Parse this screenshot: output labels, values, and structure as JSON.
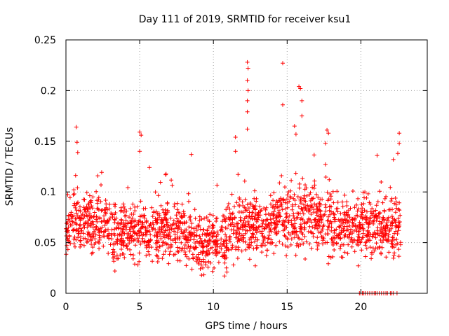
{
  "chart_data": {
    "type": "scatter",
    "title": "Day 111 of 2019, SRMTID for receiver ksu1",
    "xlabel": "GPS time / hours",
    "ylabel": "SRMTID / TECUs",
    "xlim": [
      0,
      24.5
    ],
    "ylim": [
      0,
      0.25
    ],
    "xticks": [
      0,
      5,
      10,
      15,
      20
    ],
    "yticks": [
      0,
      0.05,
      0.1,
      0.15,
      0.2,
      0.25
    ],
    "xtick_labels": [
      "0",
      "5",
      "10",
      "15",
      "20"
    ],
    "ytick_labels": [
      "0",
      "0.05",
      "0.1",
      "0.15",
      "0.2",
      "0.25"
    ],
    "grid": true,
    "marker": "+",
    "series": [
      {
        "name": "SRMTID",
        "color": "#ff0000",
        "approximate_point_count": 1900,
        "density_profile": [
          {
            "x_range": [
              0,
              1
            ],
            "y_center": 0.065,
            "y_spread": 0.03
          },
          {
            "x_range": [
              1,
              3
            ],
            "y_center": 0.07,
            "y_spread": 0.03
          },
          {
            "x_range": [
              3,
              5
            ],
            "y_center": 0.06,
            "y_spread": 0.03
          },
          {
            "x_range": [
              5,
              8
            ],
            "y_center": 0.062,
            "y_spread": 0.03
          },
          {
            "x_range": [
              8,
              11
            ],
            "y_center": 0.05,
            "y_spread": 0.03
          },
          {
            "x_range": [
              11,
              14
            ],
            "y_center": 0.065,
            "y_spread": 0.03
          },
          {
            "x_range": [
              14,
              18
            ],
            "y_center": 0.075,
            "y_spread": 0.035
          },
          {
            "x_range": [
              18,
              22.7
            ],
            "y_center": 0.065,
            "y_spread": 0.03
          }
        ],
        "peak_points": [
          {
            "x": 0.7,
            "y": 0.164
          },
          {
            "x": 0.75,
            "y": 0.149
          },
          {
            "x": 0.8,
            "y": 0.139
          },
          {
            "x": 5.0,
            "y": 0.159
          },
          {
            "x": 5.1,
            "y": 0.156
          },
          {
            "x": 5.0,
            "y": 0.14
          },
          {
            "x": 12.3,
            "y": 0.228
          },
          {
            "x": 12.35,
            "y": 0.222
          },
          {
            "x": 12.3,
            "y": 0.21
          },
          {
            "x": 12.35,
            "y": 0.2
          },
          {
            "x": 12.3,
            "y": 0.19
          },
          {
            "x": 12.3,
            "y": 0.179
          },
          {
            "x": 12.3,
            "y": 0.162
          },
          {
            "x": 11.5,
            "y": 0.154
          },
          {
            "x": 11.5,
            "y": 0.14
          },
          {
            "x": 14.7,
            "y": 0.227
          },
          {
            "x": 14.7,
            "y": 0.186
          },
          {
            "x": 15.8,
            "y": 0.204
          },
          {
            "x": 15.9,
            "y": 0.202
          },
          {
            "x": 16.0,
            "y": 0.19
          },
          {
            "x": 16.0,
            "y": 0.175
          },
          {
            "x": 15.5,
            "y": 0.165
          },
          {
            "x": 15.6,
            "y": 0.157
          },
          {
            "x": 17.7,
            "y": 0.161
          },
          {
            "x": 17.8,
            "y": 0.158
          },
          {
            "x": 17.6,
            "y": 0.148
          },
          {
            "x": 22.6,
            "y": 0.158
          },
          {
            "x": 22.6,
            "y": 0.148
          },
          {
            "x": 22.5,
            "y": 0.138
          },
          {
            "x": 21.1,
            "y": 0.136
          },
          {
            "x": 22.2,
            "y": 0.132
          },
          {
            "x": 8.5,
            "y": 0.137
          }
        ],
        "zero_points_x": [
          19.9,
          20.0,
          20.1,
          20.2,
          20.3,
          20.45,
          20.6,
          20.75,
          20.9,
          21.0,
          21.1,
          21.25,
          21.4,
          21.55,
          21.7,
          21.8,
          22.0,
          22.1,
          22.2,
          22.45
        ]
      }
    ]
  }
}
